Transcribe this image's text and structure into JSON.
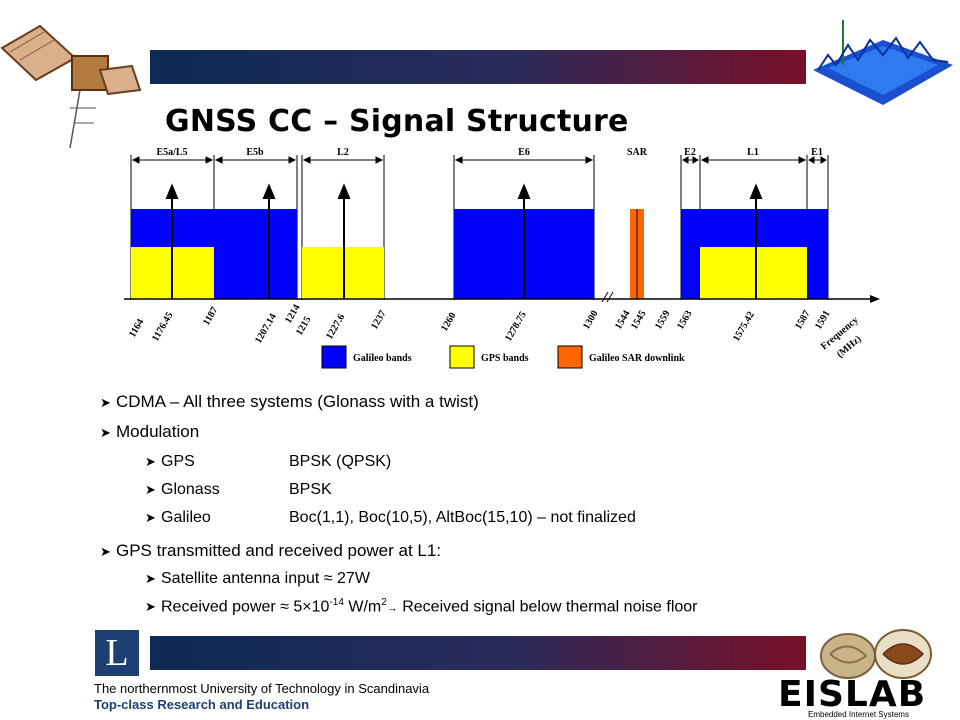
{
  "title": "GNSS CC – Signal Structure",
  "diagram": {
    "bands_top": [
      "E5a/L5",
      "E5b",
      "L2",
      "E6",
      "SAR",
      "E2",
      "L1",
      "E1"
    ],
    "freq_labels": [
      "1164",
      "1176.45",
      "1187",
      "1207.14",
      "1214",
      "1215",
      "1227.6",
      "1237",
      "1260",
      "1278.75",
      "1300",
      "1544",
      "1545",
      "1559",
      "1563",
      "1575.42",
      "1587",
      "1591"
    ],
    "axis_label_1": "Frequency",
    "axis_label_2": "(MHz)",
    "legend": [
      {
        "label": "Galileo bands",
        "color": "#0000ff"
      },
      {
        "label": "GPS bands",
        "color": "#ffff00"
      },
      {
        "label": "Galileo SAR downlink",
        "color": "#ff6600"
      }
    ]
  },
  "bullets": {
    "b1": "CDMA – All three systems (Glonass with a twist)",
    "b2": "Modulation",
    "gps_name": "GPS",
    "gps_mod": "BPSK (QPSK)",
    "glonass_name": "Glonass",
    "glonass_mod": "BPSK",
    "galileo_name": "Galileo",
    "galileo_mod": "Boc(1,1), Boc(10,5), AltBoc(15,10) – not finalized",
    "b3": "GPS transmitted and received power at L1:",
    "sat_power": "Satellite antenna input ≈ 27W",
    "rx_power_a": "Received power ≈ 5×10",
    "rx_exp": "-14",
    "rx_unit": " W/m",
    "rx_sq": "2",
    "rx_arrow": "→",
    "rx_power_b": " Received signal below thermal noise floor"
  },
  "footer": {
    "logo_letter": "L",
    "line1": "The northernmost University of Technology in Scandinavia",
    "line2": "Top-class Research and Education",
    "brand": "EISLAB",
    "brand_sub": "Embedded Internet Systems"
  }
}
